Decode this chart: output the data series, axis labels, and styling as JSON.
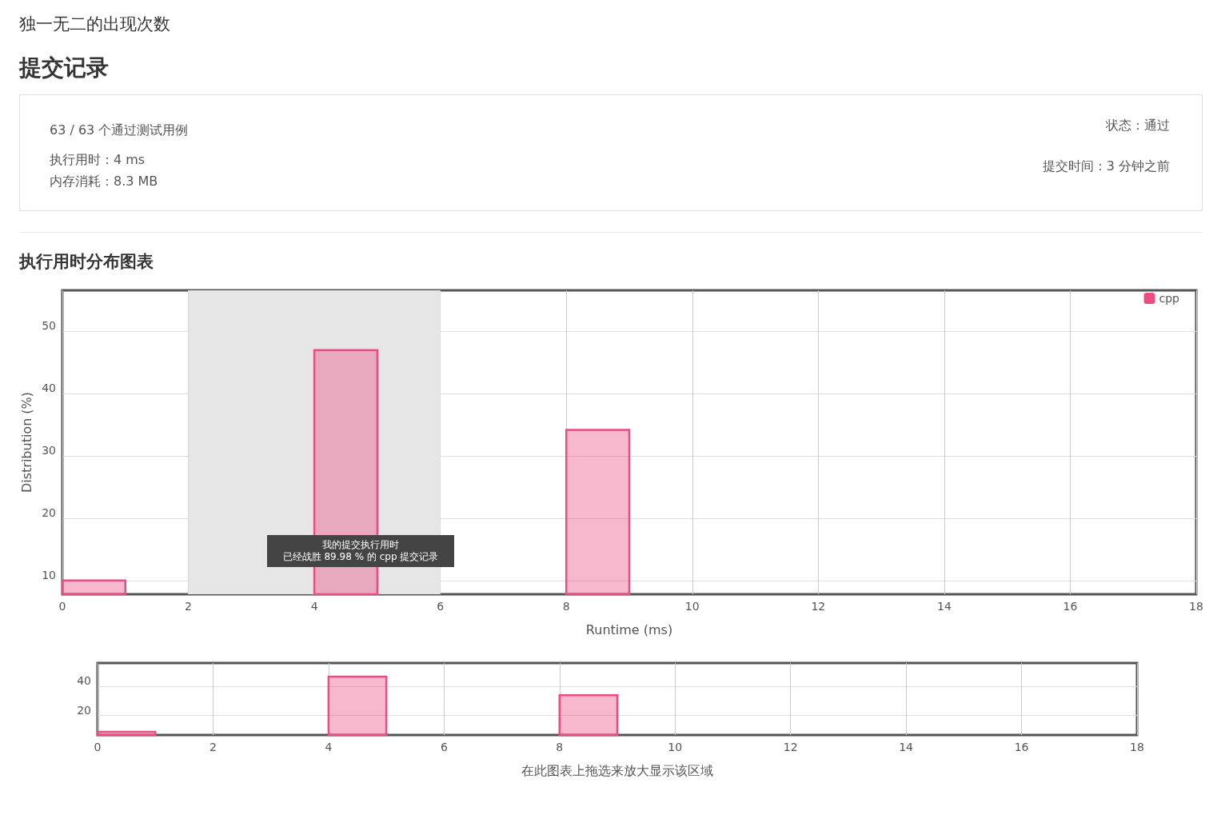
{
  "chart_data": [
    {
      "type": "other",
      "title": "独一无二的出现次数",
      "subtitle": "提交记录",
      "annotations": [
        "63 / 63 个通过测试用例",
        "执行用时：4 ms",
        "内存消耗：8.3 MB",
        "状态：通过",
        "提交时间：3 分钟之前"
      ]
    },
    {
      "type": "histogram",
      "title": "执行用时分布图表",
      "xlabel": "Runtime (ms)",
      "ylabel": "Distribution (%)",
      "bins": [
        0,
        1,
        2,
        3,
        4,
        5,
        6,
        7,
        8,
        9,
        10,
        11,
        12,
        13,
        14,
        15,
        16,
        17,
        18
      ],
      "series": [
        {
          "name": "cpp",
          "color": "#ec4c7f",
          "values": [
            10,
            null,
            null,
            null,
            47,
            null,
            null,
            null,
            34.2,
            null,
            null,
            null,
            null,
            null,
            null,
            null,
            null,
            null
          ]
        }
      ],
      "xlim": [
        0,
        18
      ],
      "xticks": [
        0,
        2,
        4,
        6,
        8,
        10,
        12,
        14,
        16,
        18
      ],
      "ylim": [
        7.8,
        56.6
      ],
      "yticks": [
        10,
        20,
        30,
        40,
        50
      ],
      "grid": true,
      "legend": "top right",
      "bands": [
        {
          "axis": "x",
          "from": 2,
          "to": 6,
          "color": "#e6e6e6"
        }
      ],
      "annotations": [
        "我的提交执行用时",
        "已经战胜 89.98 % 的 cpp 提交记录"
      ]
    },
    {
      "type": "histogram",
      "xlabel": "在此图表上拖选来放大显示该区域",
      "bins": [
        0,
        1,
        2,
        3,
        4,
        5,
        6,
        7,
        8,
        9,
        10,
        11,
        12,
        13,
        14,
        15,
        16,
        17,
        18
      ],
      "series": [
        {
          "color": "#ec4c7f",
          "values": [
            8.9,
            null,
            null,
            null,
            46.7,
            null,
            null,
            null,
            33.9,
            null,
            null,
            null,
            null,
            null,
            null,
            null,
            null,
            null
          ]
        }
      ],
      "xlim": [
        0,
        18
      ],
      "xticks": [
        0,
        2,
        4,
        6,
        8,
        10,
        12,
        14,
        16,
        18
      ],
      "ylim": [
        6.7,
        56
      ],
      "yticks": [
        20,
        40
      ],
      "grid": true
    }
  ]
}
